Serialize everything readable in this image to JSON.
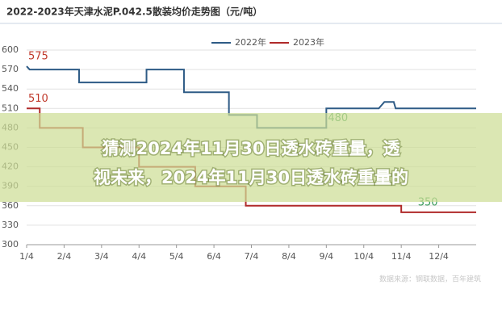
{
  "chart_data": {
    "type": "line",
    "title": "2022-2023年天津水泥P.042.5散装均价走势图（元/吨）",
    "xlim": [
      0,
      12
    ],
    "xticks": [
      {
        "value": 0,
        "label": "1/4"
      },
      {
        "value": 1,
        "label": "2/4"
      },
      {
        "value": 2,
        "label": "3/4"
      },
      {
        "value": 3,
        "label": "4/4"
      },
      {
        "value": 4,
        "label": "5/4"
      },
      {
        "value": 5,
        "label": "6/4"
      },
      {
        "value": 6,
        "label": "7/4"
      },
      {
        "value": 7,
        "label": "8/4"
      },
      {
        "value": 8,
        "label": "9/4"
      },
      {
        "value": 9,
        "label": "10/4"
      },
      {
        "value": 10,
        "label": "11/4"
      },
      {
        "value": 11,
        "label": "12/4"
      }
    ],
    "ylim": [
      300,
      600
    ],
    "yticks": [
      300,
      330,
      360,
      390,
      420,
      450,
      480,
      510,
      540,
      570,
      600
    ],
    "grid": true,
    "series": [
      {
        "name": "2022年",
        "color": "#2e5b86",
        "x": [
          0,
          0.08,
          1.4,
          1.4,
          3.2,
          3.2,
          4.2,
          4.2,
          5.4,
          5.4,
          6.15,
          6.15,
          8.0,
          8.0,
          9.4,
          9.55,
          9.8,
          9.85,
          12
        ],
        "values": [
          575,
          570,
          570,
          550,
          550,
          570,
          570,
          535,
          535,
          500,
          500,
          480,
          480,
          510,
          510,
          520,
          520,
          510,
          510
        ]
      },
      {
        "name": "2023年",
        "color": "#b02a2a",
        "x": [
          0,
          0.35,
          0.35,
          1.5,
          1.5,
          3.0,
          3.0,
          4.5,
          4.5,
          5.85,
          5.85,
          10.0,
          10.0,
          12
        ],
        "values": [
          510,
          510,
          480,
          480,
          450,
          450,
          420,
          420,
          390,
          390,
          360,
          360,
          350,
          350
        ]
      }
    ],
    "annotations": [
      {
        "text": "575",
        "x": 0,
        "y": 575,
        "color": "#c0392b"
      },
      {
        "text": "510",
        "x": 0,
        "y": 510,
        "color": "#c0392b"
      },
      {
        "text": "480",
        "x": 8.0,
        "y": 480,
        "color": "#3a9a5b"
      },
      {
        "text": "350",
        "x": 10.4,
        "y": 350,
        "color": "#3a9a5b"
      }
    ],
    "watermark": "数据来源：钢联数据，百年建筑"
  },
  "overlay": {
    "lines": [
      "猜测2024年11月30日透水砖重量，透",
      "视未来，2024年11月30日透水砖重量的"
    ]
  }
}
